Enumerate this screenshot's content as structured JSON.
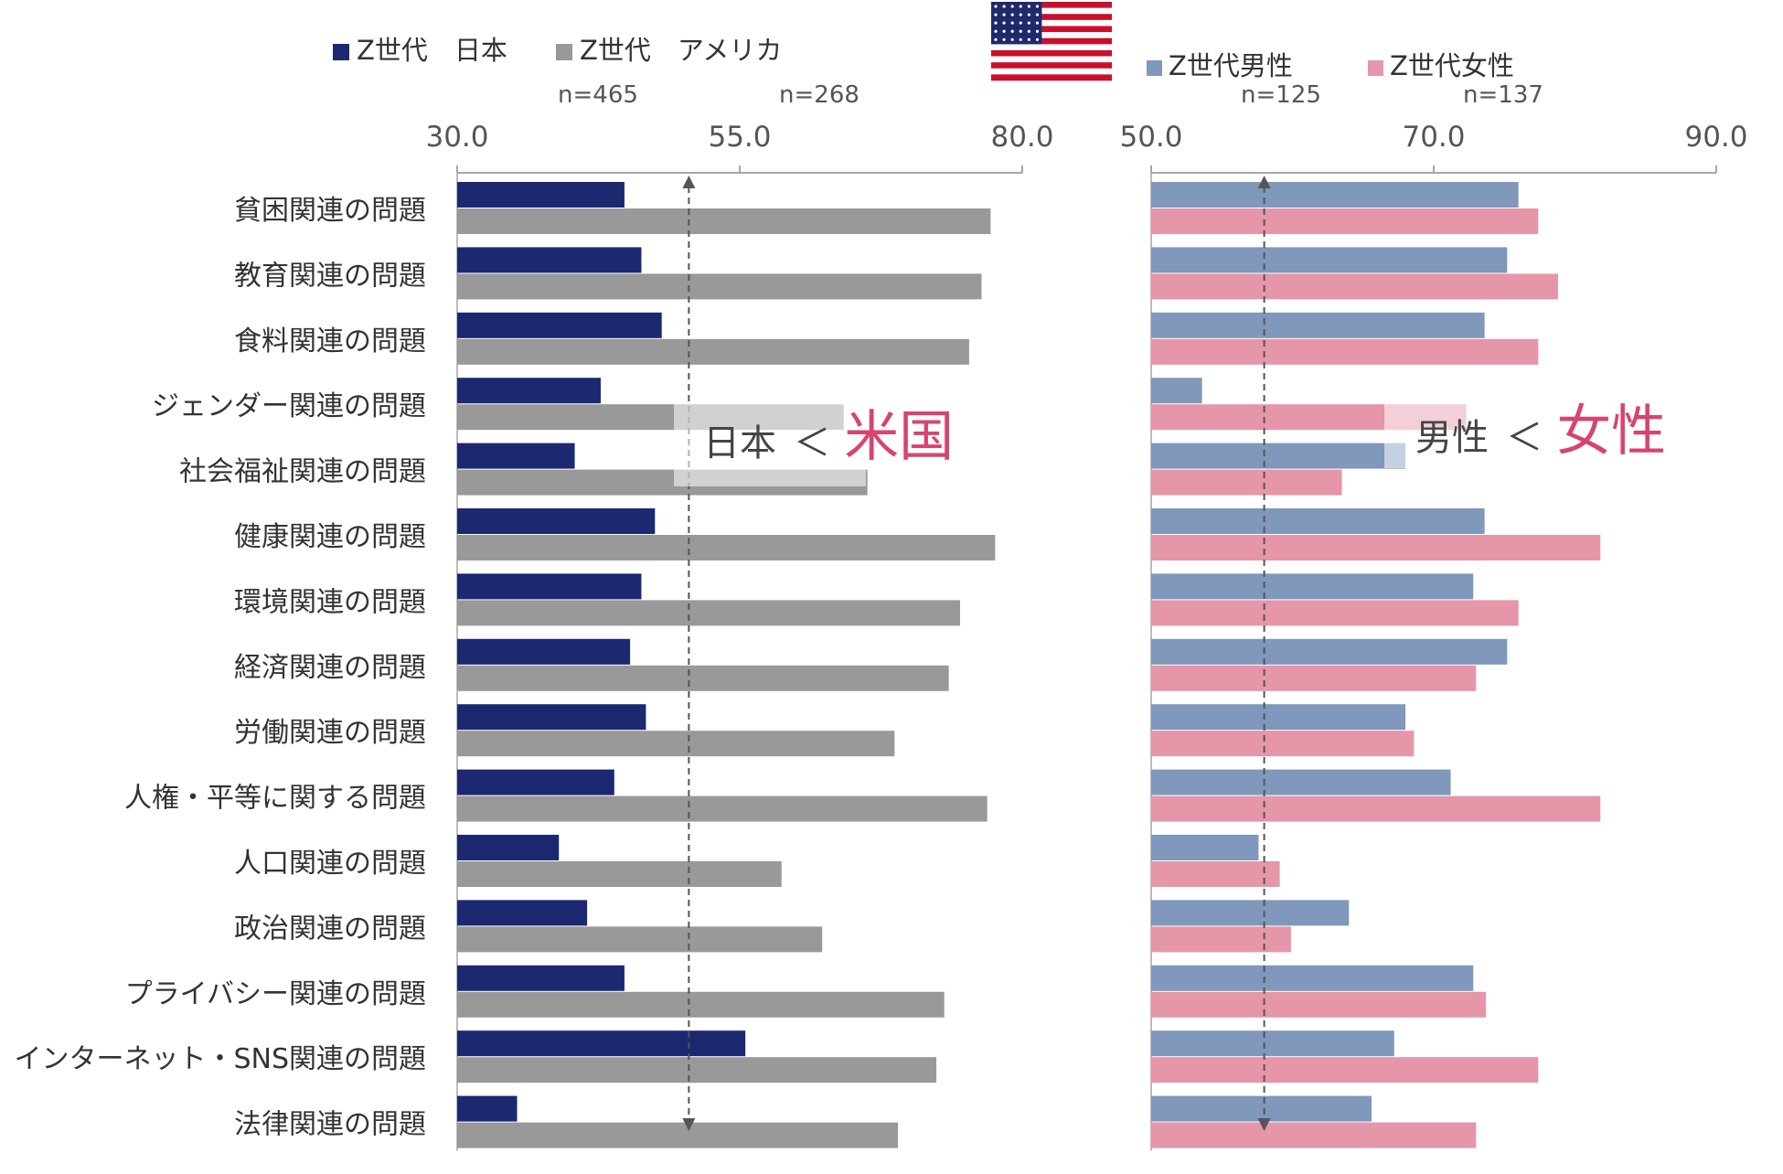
{
  "colors": {
    "jp": "#1c2870",
    "us": "#999999",
    "male": "#7f98bb",
    "female": "#e596a8",
    "accent": "#d6456d",
    "axis": "#a6a6a6"
  },
  "flag": {
    "icon": "usa-flag-icon"
  },
  "chart_data": [
    {
      "type": "bar",
      "orientation": "horizontal",
      "categories": [
        "貧困関連の問題",
        "教育関連の問題",
        "食料関連の問題",
        "ジェンダー関連の問題",
        "社会福祉関連の問題",
        "健康関連の問題",
        "環境関連の問題",
        "経済関連の問題",
        "労働関連の問題",
        "人権・平等に関する問題",
        "人口関連の問題",
        "政治関連の問題",
        "プライバシー関連の問題",
        "インターネット・SNS関連の問題",
        "法律関連の問題"
      ],
      "series": [
        {
          "name": "Z世代　日本",
          "n": "n=465",
          "values": [
            44.8,
            46.3,
            48.1,
            42.7,
            40.4,
            47.5,
            46.3,
            45.3,
            46.7,
            43.9,
            39.0,
            41.5,
            44.8,
            55.5,
            35.3
          ]
        },
        {
          "name": "Z世代　アメリカ",
          "n": "n=268",
          "values": [
            77.2,
            76.4,
            75.3,
            64.2,
            66.3,
            77.6,
            74.5,
            73.5,
            68.7,
            76.9,
            58.7,
            62.3,
            73.1,
            72.4,
            69.0
          ]
        }
      ],
      "xlim": [
        30,
        80
      ],
      "xticks": [
        "30.0",
        "55.0",
        "80.0"
      ],
      "reference_line": 50.5,
      "grid": false,
      "legend_position": "top",
      "annotation": {
        "left": "日本",
        "symbol": "＜",
        "right": "米国"
      }
    },
    {
      "type": "bar",
      "orientation": "horizontal",
      "categories": [
        "貧困関連の問題",
        "教育関連の問題",
        "食料関連の問題",
        "ジェンダー関連の問題",
        "社会福祉関連の問題",
        "健康関連の問題",
        "環境関連の問題",
        "経済関連の問題",
        "労働関連の問題",
        "人権・平等に関する問題",
        "人口関連の問題",
        "政治関連の問題",
        "プライバシー関連の問題",
        "インターネット・SNS関連の問題",
        "法律関連の問題"
      ],
      "series": [
        {
          "name": "Z世代男性",
          "n": "n=125",
          "values": [
            76.0,
            75.2,
            73.6,
            53.6,
            68.0,
            73.6,
            72.8,
            75.2,
            68.0,
            71.2,
            57.6,
            64.0,
            72.8,
            67.2,
            65.6
          ]
        },
        {
          "name": "Z世代女性",
          "n": "n=137",
          "values": [
            77.4,
            78.8,
            77.4,
            72.3,
            63.5,
            81.8,
            76.0,
            73.0,
            68.6,
            81.8,
            59.1,
            59.9,
            73.7,
            77.4,
            73.0
          ]
        }
      ],
      "xlim": [
        50,
        90
      ],
      "xticks": [
        "50.0",
        "70.0",
        "90.0"
      ],
      "reference_line": 58.0,
      "grid": false,
      "legend_position": "top",
      "annotation": {
        "left": "男性",
        "symbol": "＜",
        "right": "女性"
      }
    }
  ]
}
